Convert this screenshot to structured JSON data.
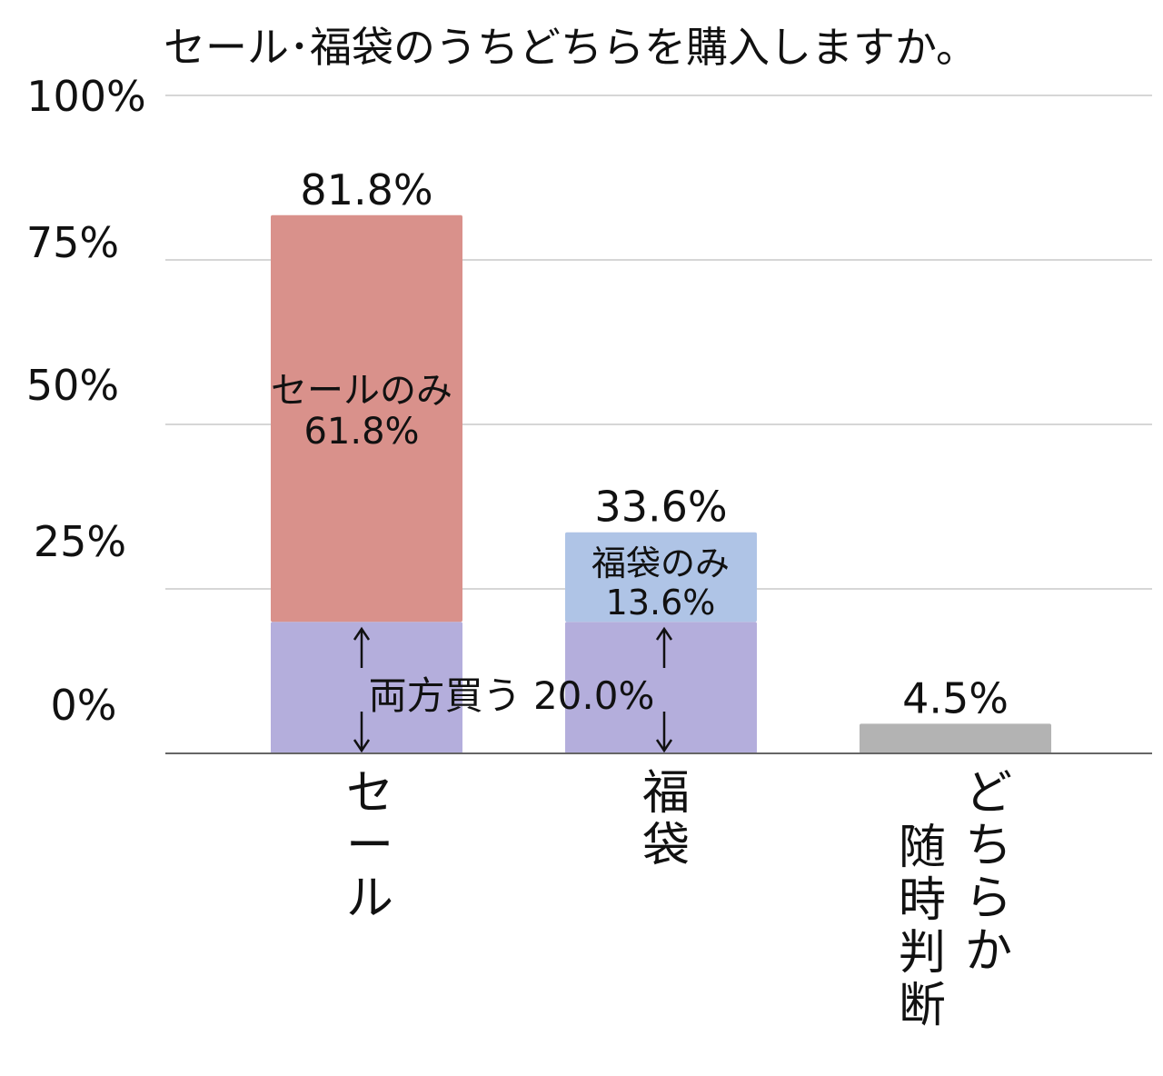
{
  "chart_data": {
    "type": "bar",
    "title": "セール･福袋のうちどちらを購入しますか。",
    "y_ticks": [
      "100%",
      "75%",
      "50%",
      "25%",
      "0%"
    ],
    "ylim": [
      0,
      100
    ],
    "grid": true,
    "categories": [
      {
        "label": [
          "セ",
          "ー",
          "ル"
        ],
        "total": 81.8,
        "total_label": "81.8%"
      },
      {
        "label": [
          "福",
          "袋"
        ],
        "total": 33.6,
        "total_label": "33.6%"
      },
      {
        "label": [
          "ど",
          "ち",
          "ら",
          "か",
          "随",
          "時",
          "判",
          "断"
        ],
        "total": 4.5,
        "total_label": "4.5%"
      }
    ],
    "series": [
      {
        "name": "両方買う",
        "values": [
          20.0,
          20.0,
          0
        ],
        "color": "#b4aedc"
      },
      {
        "name": "セールのみ",
        "values": [
          61.8,
          0,
          0
        ],
        "color": "#d9918b"
      },
      {
        "name": "福袋のみ",
        "values": [
          0,
          13.6,
          0
        ],
        "color": "#afc4e6"
      },
      {
        "name": "どちらか随時判断",
        "values": [
          0,
          0,
          4.5
        ],
        "color": "#b3b3b3"
      }
    ],
    "annotations": {
      "sale_only": [
        "セールのみ",
        "61.8%"
      ],
      "fukubukuro_only": [
        "福袋のみ",
        "13.6%"
      ],
      "both": "両方買う 20.0%"
    }
  }
}
